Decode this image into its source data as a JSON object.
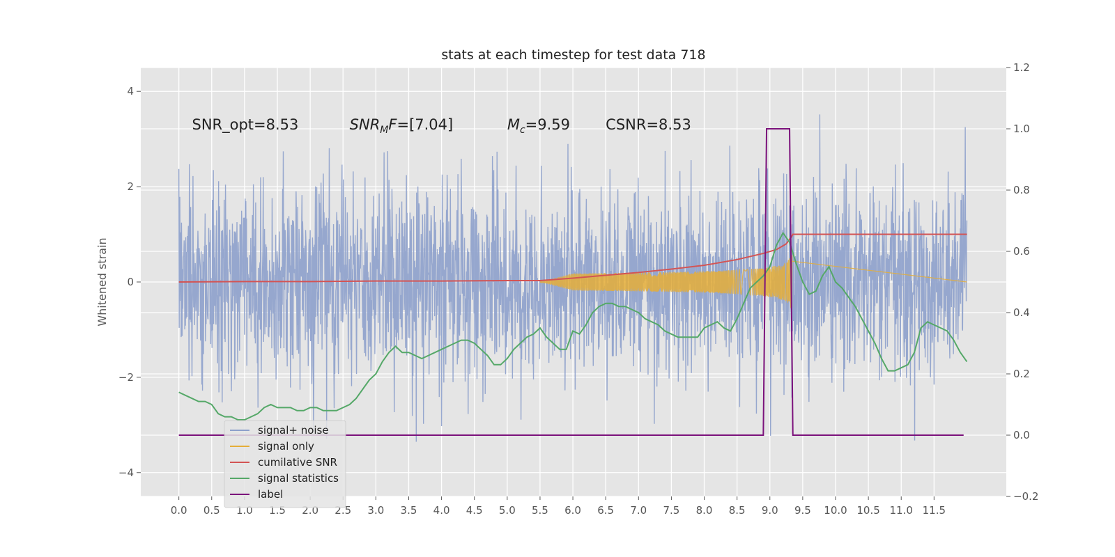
{
  "chart_data": {
    "type": "line",
    "title": "stats at each timestep for test data 718",
    "ylabel": "Whitened strain",
    "xlabel": "",
    "xlim": [
      -0.58,
      12.6
    ],
    "ylim": [
      -4.5,
      4.5
    ],
    "y2lim": [
      -0.2,
      1.2
    ],
    "x_ticks": [
      "0.0",
      "0.5",
      "1.0",
      "1.5",
      "2.0",
      "2.5",
      "3.0",
      "3.5",
      "4.0",
      "4.5",
      "5.0",
      "5.5",
      "6.0",
      "6.5",
      "7.0",
      "7.5",
      "8.0",
      "8.5",
      "9.0",
      "9.5",
      "10.0",
      "10.5",
      "11.0",
      "11.5"
    ],
    "x_tick_values": [
      0,
      0.5,
      1,
      1.5,
      2,
      2.5,
      3,
      3.5,
      4,
      4.5,
      5,
      5.5,
      6,
      6.5,
      7,
      7.5,
      8,
      8.5,
      9,
      9.5,
      10,
      10.5,
      11,
      11.5
    ],
    "y_ticks": [
      "−4",
      "−2",
      "0",
      "2",
      "4"
    ],
    "y_tick_values": [
      -4,
      -2,
      0,
      2,
      4
    ],
    "y2_ticks": [
      "−0.2",
      "0.0",
      "0.2",
      "0.4",
      "0.6",
      "0.8",
      "1.0",
      "1.2"
    ],
    "y2_tick_values": [
      -0.2,
      0,
      0.2,
      0.4,
      0.6,
      0.8,
      1.0,
      1.2
    ],
    "grid": true,
    "legend_position": "lower-left",
    "annotations": [
      {
        "prefix": "SNR_opt=8.53",
        "x": 0.2
      },
      {
        "prefix": "SNR",
        "sub": "M",
        "suffix": "F=[7.04]",
        "italic": true,
        "x": 2.6
      },
      {
        "prefix": "M",
        "sub": "c",
        "suffix": "=9.59",
        "italic": true,
        "x": 5.0
      },
      {
        "prefix": "CSNR=8.53",
        "x": 6.5
      }
    ],
    "annotation_y": 3.3,
    "series": [
      {
        "name": "signal+ noise",
        "color": "#8da0cb",
        "kind": "noise",
        "x_range": [
          0,
          12.0
        ],
        "amplitude": 1.0
      },
      {
        "name": "signal only",
        "color": "#e5ae38",
        "kind": "chirp",
        "x_range": [
          5.5,
          9.35
        ],
        "peak_amplitude": 0.65
      },
      {
        "name": "cumilative SNR",
        "color": "#d35454",
        "axis": "left",
        "x": [
          0,
          1,
          2,
          3,
          4,
          5,
          5.5,
          6,
          6.5,
          7,
          7.5,
          8,
          8.5,
          8.9,
          9.1,
          9.25,
          9.33,
          9.35,
          10,
          11,
          12
        ],
        "y": [
          0,
          0.01,
          0.01,
          0.02,
          0.02,
          0.03,
          0.03,
          0.08,
          0.14,
          0.2,
          0.27,
          0.35,
          0.47,
          0.6,
          0.68,
          0.8,
          0.95,
          1.0,
          1.0,
          1.0,
          1.0
        ]
      },
      {
        "name": "signal statistics",
        "color": "#55a868",
        "axis": "right",
        "x": [
          0,
          0.1,
          0.2,
          0.3,
          0.4,
          0.5,
          0.6,
          0.7,
          0.8,
          0.9,
          1.0,
          1.1,
          1.2,
          1.3,
          1.4,
          1.5,
          1.6,
          1.7,
          1.8,
          1.9,
          2.0,
          2.1,
          2.2,
          2.3,
          2.4,
          2.5,
          2.6,
          2.7,
          2.8,
          2.9,
          3.0,
          3.1,
          3.2,
          3.3,
          3.4,
          3.5,
          3.6,
          3.7,
          3.8,
          3.9,
          4.0,
          4.1,
          4.2,
          4.3,
          4.4,
          4.5,
          4.6,
          4.7,
          4.8,
          4.9,
          5.0,
          5.1,
          5.2,
          5.3,
          5.4,
          5.5,
          5.6,
          5.7,
          5.8,
          5.9,
          6.0,
          6.1,
          6.2,
          6.3,
          6.4,
          6.5,
          6.6,
          6.7,
          6.8,
          6.9,
          7.0,
          7.1,
          7.2,
          7.3,
          7.4,
          7.5,
          7.6,
          7.7,
          7.8,
          7.9,
          8.0,
          8.1,
          8.2,
          8.3,
          8.4,
          8.5,
          8.6,
          8.7,
          8.8,
          8.9,
          9.0,
          9.1,
          9.2,
          9.3,
          9.4,
          9.5,
          9.6,
          9.7,
          9.8,
          9.9,
          10.0,
          10.1,
          10.2,
          10.3,
          10.4,
          10.5,
          10.6,
          10.7,
          10.8,
          10.9,
          11.0,
          11.1,
          11.2,
          11.3,
          11.4,
          11.5,
          11.6,
          11.7,
          11.8,
          11.9,
          12.0
        ],
        "y": [
          0.14,
          0.13,
          0.12,
          0.11,
          0.11,
          0.1,
          0.07,
          0.06,
          0.06,
          0.05,
          0.05,
          0.06,
          0.07,
          0.09,
          0.1,
          0.09,
          0.09,
          0.09,
          0.08,
          0.08,
          0.09,
          0.09,
          0.08,
          0.08,
          0.08,
          0.09,
          0.1,
          0.12,
          0.15,
          0.18,
          0.2,
          0.24,
          0.27,
          0.29,
          0.27,
          0.27,
          0.26,
          0.25,
          0.26,
          0.27,
          0.28,
          0.29,
          0.3,
          0.31,
          0.31,
          0.3,
          0.28,
          0.26,
          0.23,
          0.23,
          0.25,
          0.28,
          0.3,
          0.32,
          0.33,
          0.35,
          0.32,
          0.3,
          0.28,
          0.28,
          0.34,
          0.33,
          0.36,
          0.4,
          0.42,
          0.43,
          0.43,
          0.42,
          0.42,
          0.41,
          0.4,
          0.38,
          0.37,
          0.36,
          0.34,
          0.33,
          0.32,
          0.32,
          0.32,
          0.32,
          0.35,
          0.36,
          0.37,
          0.35,
          0.34,
          0.38,
          0.43,
          0.48,
          0.5,
          0.52,
          0.55,
          0.62,
          0.66,
          0.63,
          0.56,
          0.5,
          0.46,
          0.47,
          0.52,
          0.55,
          0.5,
          0.48,
          0.45,
          0.42,
          0.38,
          0.34,
          0.3,
          0.25,
          0.21,
          0.21,
          0.22,
          0.23,
          0.27,
          0.35,
          0.37,
          0.36,
          0.35,
          0.34,
          0.31,
          0.27,
          0.24
        ]
      },
      {
        "name": "label",
        "color": "#7b117b",
        "axis": "right",
        "x": [
          0,
          8.9,
          8.95,
          9.3,
          9.35,
          11.95
        ],
        "y": [
          0,
          0,
          1,
          1,
          0,
          0
        ]
      }
    ]
  }
}
